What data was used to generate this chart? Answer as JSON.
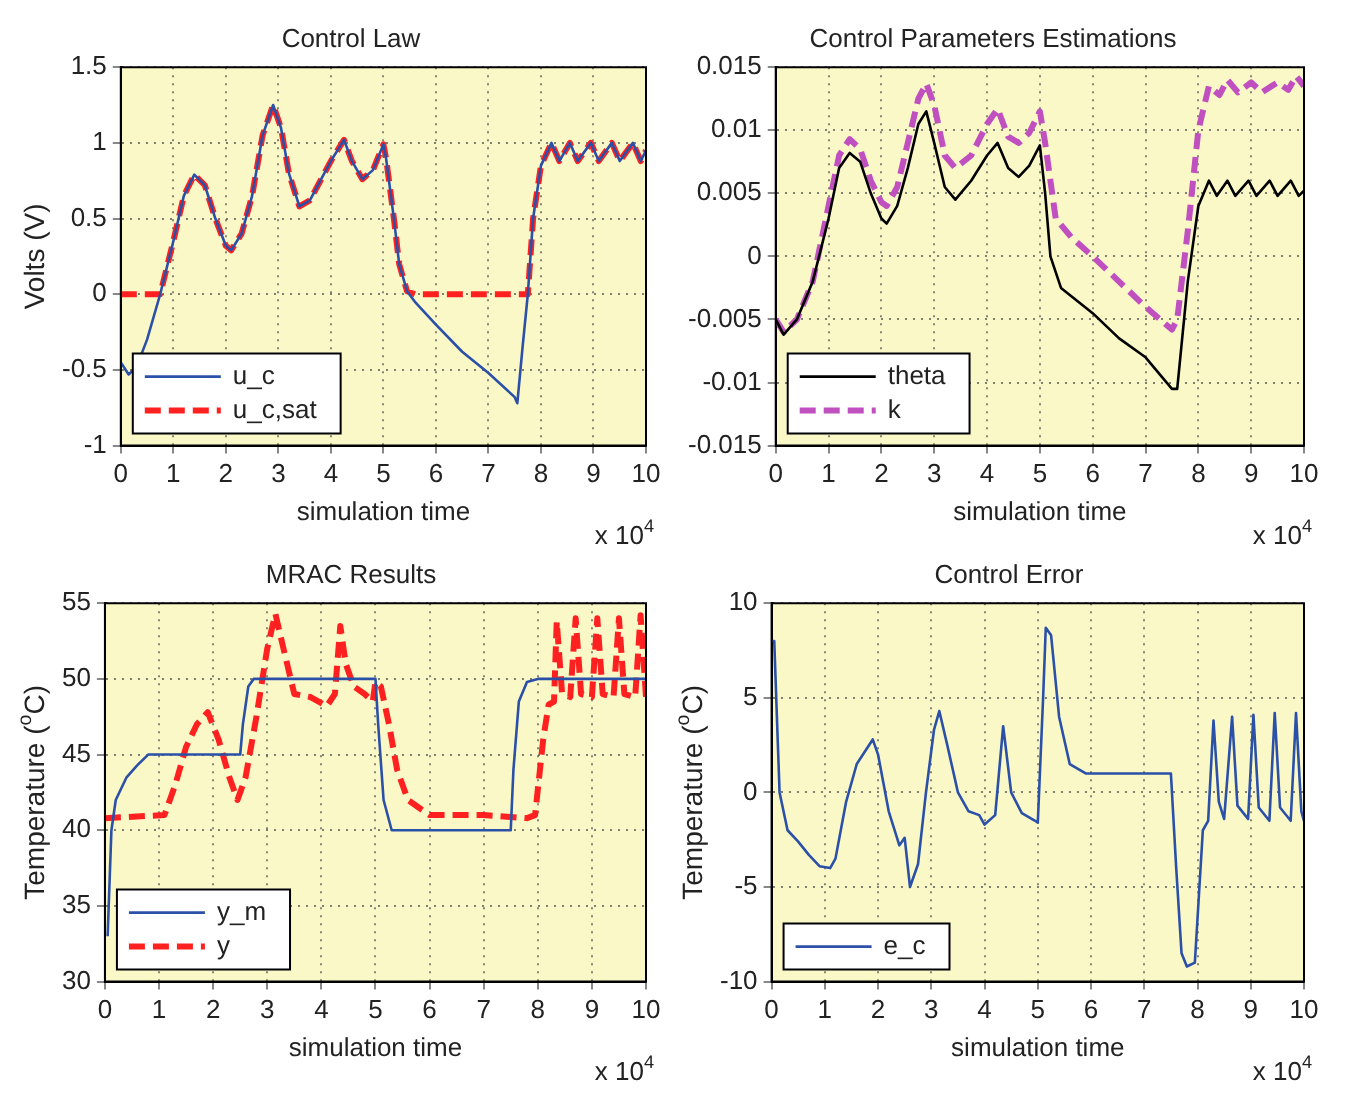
{
  "chart_data": [
    {
      "type": "line",
      "title": "Control Law",
      "xlabel": "simulation time",
      "ylabel": "Volts (V)",
      "annotations": [
        "x 10$^{4}$"
      ],
      "xlim": [
        0,
        10
      ],
      "xticks": [
        0,
        1,
        2,
        3,
        4,
        5,
        6,
        7,
        8,
        9,
        10
      ],
      "ylim": [
        -1,
        1.5
      ],
      "yticks": [
        -1,
        -0.5,
        0,
        0.5,
        1,
        1.5
      ],
      "grid": true,
      "legend": "bottom left",
      "series": [
        {
          "name": "u_c",
          "color": "#2b50a8",
          "line_style": "solid",
          "x": [
            0,
            0.15,
            0.3,
            0.5,
            0.75,
            1,
            1.2,
            1.4,
            1.6,
            1.8,
            2,
            2.1,
            2.3,
            2.5,
            2.7,
            2.9,
            3.05,
            3.2,
            3.4,
            3.6,
            3.8,
            4,
            4.25,
            4.4,
            4.6,
            4.8,
            5,
            5.05,
            5.2,
            5.3,
            5.45,
            5.6,
            6,
            6.5,
            7,
            7.5,
            7.55,
            7.65,
            7.75,
            7.85,
            8,
            8.2,
            8.35,
            8.55,
            8.7,
            8.95,
            9.1,
            9.35,
            9.5,
            9.75,
            9.9,
            10
          ],
          "values": [
            -0.45,
            -0.53,
            -0.48,
            -0.3,
            0,
            0.35,
            0.65,
            0.79,
            0.72,
            0.5,
            0.32,
            0.29,
            0.4,
            0.65,
            1.05,
            1.25,
            1.1,
            0.8,
            0.58,
            0.62,
            0.75,
            0.88,
            1.02,
            0.88,
            0.76,
            0.82,
            0.99,
            0.9,
            0.5,
            0.2,
            0.02,
            -0.05,
            -0.2,
            -0.38,
            -0.52,
            -0.68,
            -0.72,
            -0.35,
            0,
            0.5,
            0.85,
            1,
            0.88,
            1,
            0.88,
            1,
            0.88,
            1,
            0.88,
            1,
            0.88,
            0.95
          ]
        },
        {
          "name": "u_c,sat",
          "color": "#ff2020",
          "line_style": "dashed",
          "x": [
            0,
            0.75,
            1,
            1.2,
            1.4,
            1.6,
            1.8,
            2,
            2.1,
            2.3,
            2.5,
            2.7,
            2.9,
            3.05,
            3.2,
            3.4,
            3.6,
            3.8,
            4,
            4.25,
            4.4,
            4.6,
            4.8,
            5,
            5.05,
            5.2,
            5.3,
            5.45,
            5.6,
            7.75,
            7.85,
            8,
            8.2,
            8.35,
            8.55,
            8.7,
            8.95,
            9.1,
            9.35,
            9.5,
            9.75,
            9.9,
            10
          ],
          "values": [
            0,
            0,
            0.35,
            0.65,
            0.79,
            0.72,
            0.5,
            0.32,
            0.29,
            0.4,
            0.65,
            1.05,
            1.25,
            1.1,
            0.8,
            0.58,
            0.62,
            0.75,
            0.88,
            1.02,
            0.88,
            0.76,
            0.82,
            0.99,
            0.9,
            0.5,
            0.2,
            0.02,
            0,
            0,
            0.5,
            0.85,
            1,
            0.88,
            1,
            0.88,
            1,
            0.88,
            1,
            0.88,
            1,
            0.88,
            0.95
          ]
        }
      ]
    },
    {
      "type": "line",
      "title": "Control Parameters Estimations",
      "xlabel": "simulation time",
      "annotations": [
        "x 10$^{4}$"
      ],
      "xlim": [
        0,
        10
      ],
      "xticks": [
        0,
        1,
        2,
        3,
        4,
        5,
        6,
        7,
        8,
        9,
        10
      ],
      "ylim": [
        -0.015,
        0.015
      ],
      "yticks": [
        -0.015,
        -0.01,
        -0.005,
        0,
        0.005,
        0.01,
        0.015
      ],
      "grid": true,
      "legend": "bottom left",
      "series": [
        {
          "name": "theta",
          "color": "#000000",
          "line_style": "solid",
          "x": [
            0,
            0.15,
            0.4,
            0.7,
            1,
            1.2,
            1.4,
            1.6,
            1.8,
            2,
            2.1,
            2.3,
            2.5,
            2.7,
            2.85,
            3,
            3.2,
            3.4,
            3.7,
            4,
            4.2,
            4.4,
            4.6,
            4.8,
            5,
            5.1,
            5.2,
            5.4,
            6,
            6.5,
            7,
            7.5,
            7.6,
            7.8,
            8,
            8.2,
            8.35,
            8.55,
            8.7,
            8.95,
            9.1,
            9.35,
            9.5,
            9.75,
            9.9,
            10
          ],
          "values": [
            -0.005,
            -0.0062,
            -0.005,
            -0.002,
            0.003,
            0.007,
            0.0082,
            0.0075,
            0.005,
            0.003,
            0.0026,
            0.004,
            0.007,
            0.0105,
            0.0115,
            0.009,
            0.0055,
            0.0045,
            0.006,
            0.008,
            0.009,
            0.007,
            0.0063,
            0.0072,
            0.0088,
            0.005,
            0,
            -0.0025,
            -0.0045,
            -0.0065,
            -0.008,
            -0.0105,
            -0.0105,
            -0.002,
            0.004,
            0.006,
            0.0048,
            0.006,
            0.0048,
            0.006,
            0.0048,
            0.006,
            0.0048,
            0.006,
            0.0048,
            0.0052
          ]
        },
        {
          "name": "k",
          "color": "#c050c0",
          "line_style": "dashed",
          "x": [
            0,
            0.15,
            0.4,
            0.7,
            1,
            1.2,
            1.4,
            1.6,
            1.8,
            2,
            2.1,
            2.3,
            2.5,
            2.7,
            2.85,
            3,
            3.2,
            3.4,
            3.7,
            4,
            4.2,
            4.4,
            4.6,
            4.8,
            5,
            5.1,
            5.3,
            5.6,
            6,
            6.5,
            7,
            7.5,
            7.6,
            7.8,
            8,
            8.2,
            8.4,
            8.55,
            8.75,
            9,
            9.2,
            9.5,
            9.7,
            9.85,
            10
          ],
          "values": [
            -0.005,
            -0.006,
            -0.005,
            -0.002,
            0.004,
            0.008,
            0.0093,
            0.0085,
            0.006,
            0.0043,
            0.004,
            0.0055,
            0.009,
            0.0125,
            0.0137,
            0.012,
            0.008,
            0.007,
            0.008,
            0.0105,
            0.0117,
            0.0095,
            0.009,
            0.0098,
            0.0115,
            0.009,
            0.003,
            0.0015,
            0,
            -0.002,
            -0.004,
            -0.0058,
            -0.005,
            0.002,
            0.01,
            0.0135,
            0.0128,
            0.014,
            0.013,
            0.0138,
            0.013,
            0.0138,
            0.0132,
            0.0143,
            0.0135
          ]
        }
      ]
    },
    {
      "type": "line",
      "title": "MRAC Results",
      "xlabel": "simulation time",
      "ylabel": "Temperature ($^{o}$C)",
      "annotations": [
        "x 10$^{4}$"
      ],
      "xlim": [
        0,
        10
      ],
      "xticks": [
        0,
        1,
        2,
        3,
        4,
        5,
        6,
        7,
        8,
        9,
        10
      ],
      "ylim": [
        30,
        55
      ],
      "yticks": [
        30,
        35,
        40,
        45,
        50,
        55
      ],
      "grid": true,
      "legend": "bottom left",
      "series": [
        {
          "name": "y_m",
          "color": "#2b50a8",
          "line_style": "solid",
          "x": [
            0.05,
            0.12,
            0.2,
            0.4,
            0.6,
            0.8,
            2.5,
            2.55,
            2.65,
            2.75,
            5,
            5.05,
            5.15,
            5.3,
            7.5,
            7.55,
            7.65,
            7.8,
            8,
            10
          ],
          "values": [
            33,
            40,
            42,
            43.5,
            44.3,
            45,
            45,
            47,
            49.5,
            50,
            50,
            47,
            42,
            40,
            40,
            44,
            48.5,
            49.8,
            50,
            50
          ]
        },
        {
          "name": "y",
          "color": "#ff2020",
          "line_style": "dashed",
          "x": [
            0,
            1.1,
            1.3,
            1.5,
            1.7,
            1.9,
            2.1,
            2.3,
            2.45,
            2.6,
            2.8,
            3,
            3.15,
            3.3,
            3.5,
            3.8,
            4.1,
            4.25,
            4.35,
            4.45,
            4.6,
            4.8,
            4.95,
            5,
            5.1,
            5.25,
            5.4,
            5.6,
            6,
            7,
            7.8,
            7.95,
            8.1,
            8.2,
            8.3,
            8.35,
            8.45,
            8.6,
            8.7,
            8.8,
            9,
            9.1,
            9.2,
            9.4,
            9.5,
            9.6,
            9.8,
            9.9,
            10
          ],
          "values": [
            40.8,
            41,
            43,
            45.5,
            47,
            47.8,
            46,
            43.5,
            42,
            43.5,
            47.5,
            52,
            54.3,
            52,
            49,
            48.8,
            48.2,
            49,
            53.5,
            51,
            49.5,
            49,
            48.5,
            49.8,
            49.5,
            47,
            44,
            42,
            41,
            41,
            40.8,
            41,
            46,
            48.3,
            48.5,
            53.8,
            49,
            48.8,
            54,
            49,
            48.8,
            54,
            49,
            48.8,
            54,
            49,
            48.8,
            54.2,
            48.8
          ]
        }
      ]
    },
    {
      "type": "line",
      "title": "Control Error",
      "xlabel": "simulation time",
      "ylabel": "Temperature ($^{o}$C)",
      "annotations": [
        "x 10$^{4}$"
      ],
      "xlim": [
        0,
        10
      ],
      "xticks": [
        0,
        1,
        2,
        3,
        4,
        5,
        6,
        7,
        8,
        9,
        10
      ],
      "ylim": [
        -10,
        10
      ],
      "yticks": [
        -10,
        -5,
        0,
        5,
        10
      ],
      "grid": true,
      "legend": "bottom left",
      "series": [
        {
          "name": "e_c",
          "color": "#2b50a8",
          "line_style": "solid",
          "x": [
            0,
            0.05,
            0.15,
            0.3,
            0.5,
            0.7,
            0.9,
            1.1,
            1.2,
            1.4,
            1.6,
            1.9,
            2,
            2.2,
            2.4,
            2.5,
            2.6,
            2.75,
            2.9,
            3.05,
            3.15,
            3.3,
            3.5,
            3.7,
            3.9,
            4,
            4.2,
            4.35,
            4.5,
            4.7,
            4.95,
            5,
            5.1,
            5.15,
            5.25,
            5.4,
            5.6,
            5.9,
            7,
            7.5,
            7.6,
            7.7,
            7.8,
            7.95,
            8.1,
            8.2,
            8.3,
            8.4,
            8.5,
            8.65,
            8.75,
            8.95,
            9.05,
            9.15,
            9.35,
            9.45,
            9.55,
            9.75,
            9.85,
            9.95,
            10
          ],
          "values": [
            8,
            8,
            0,
            -2,
            -2.6,
            -3.3,
            -3.9,
            -4,
            -3.5,
            -0.5,
            1.5,
            2.8,
            2,
            -1,
            -2.8,
            -2.4,
            -5,
            -3.8,
            0,
            3.3,
            4.3,
            2.5,
            0,
            -1,
            -1.2,
            -1.7,
            -1.2,
            3.5,
            0,
            -1.1,
            -1.5,
            -1.6,
            5,
            8.7,
            8.3,
            4,
            1.5,
            1,
            1,
            1,
            -4,
            -8.5,
            -9.2,
            -9,
            -2,
            -1.5,
            3.8,
            -0.5,
            -1.4,
            4,
            -0.7,
            -1.4,
            4.1,
            -0.8,
            -1.5,
            4.2,
            -0.8,
            -1.5,
            4.2,
            -1,
            -1.5
          ]
        }
      ]
    }
  ]
}
